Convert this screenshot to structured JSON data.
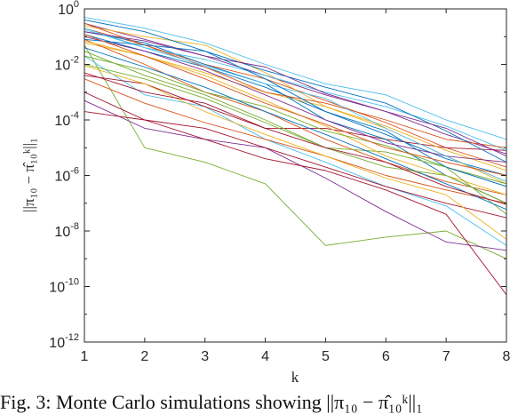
{
  "chart_data": {
    "type": "line",
    "title": "",
    "xlabel": "k",
    "ylabel": "||π₁₀ − π̂₁₀ᵏ||₁",
    "x": [
      1,
      2,
      3,
      4,
      5,
      6,
      7,
      8
    ],
    "xlim": [
      1,
      8
    ],
    "ylim": [
      1e-12,
      1
    ],
    "yscale": "log",
    "x_ticks": [
      "1",
      "2",
      "3",
      "4",
      "5",
      "6",
      "7",
      "8"
    ],
    "y_ticks": [
      {
        "base": "10",
        "exp": "0"
      },
      {
        "base": "10",
        "exp": "-2"
      },
      {
        "base": "10",
        "exp": "-4"
      },
      {
        "base": "10",
        "exp": "-6"
      },
      {
        "base": "10",
        "exp": "-8"
      },
      {
        "base": "10",
        "exp": "-10"
      },
      {
        "base": "10",
        "exp": "-12"
      }
    ],
    "grid": false,
    "series_colors": [
      "#0072bd",
      "#d95319",
      "#edb120",
      "#7e2f8e",
      "#77ac30",
      "#4dbeee",
      "#a2142f"
    ],
    "series": [
      {
        "values": [
          0.12,
          0.03,
          0.008,
          0.0015,
          0.0002,
          3e-05,
          4e-06,
          1e-06
        ]
      },
      {
        "values": [
          0.2,
          0.05,
          0.01,
          0.003,
          0.0005,
          8e-05,
          1e-05,
          2e-06
        ]
      },
      {
        "values": [
          0.06,
          0.02,
          0.005,
          0.001,
          0.0003,
          5e-05,
          5e-06,
          5e-07
        ]
      },
      {
        "values": [
          0.3,
          0.08,
          0.02,
          0.004,
          0.0008,
          0.0002,
          3e-05,
          6e-06
        ]
      },
      {
        "values": [
          0.05,
          1e-05,
          3e-06,
          5e-07,
          3e-09,
          6e-09,
          1e-08,
          1e-09
        ]
      },
      {
        "values": [
          0.02,
          0.0008,
          0.0003,
          2e-05,
          3e-06,
          4e-07,
          8e-08,
          3e-09
        ]
      },
      {
        "values": [
          0.004,
          0.002,
          0.0003,
          5e-05,
          5e-05,
          2e-05,
          1e-05,
          8e-06
        ]
      },
      {
        "values": [
          0.15,
          0.06,
          0.01,
          0.002,
          0.0001,
          2e-05,
          1e-06,
          1e-07
        ]
      },
      {
        "values": [
          0.08,
          0.01,
          0.001,
          0.0002,
          2e-05,
          3e-06,
          6e-07,
          2e-07
        ]
      },
      {
        "values": [
          0.25,
          0.1,
          0.05,
          0.005,
          0.0003,
          6e-05,
          8e-06,
          1.5e-06
        ]
      },
      {
        "values": [
          0.0005,
          5e-05,
          2e-05,
          1e-05,
          8e-07,
          5e-08,
          4e-09,
          2e-09
        ]
      },
      {
        "values": [
          0.01,
          0.003,
          0.0006,
          8e-05,
          1e-05,
          7e-06,
          2e-06,
          5e-07
        ]
      },
      {
        "values": [
          0.18,
          0.04,
          0.015,
          0.004,
          0.001,
          0.0003,
          6e-05,
          8e-06
        ]
      },
      {
        "values": [
          0.001,
          0.0001,
          2e-05,
          4e-06,
          1.5e-06,
          3e-07,
          4e-08,
          5e-11
        ]
      },
      {
        "values": [
          0.4,
          0.15,
          0.03,
          0.006,
          0.0015,
          0.0004,
          4e-05,
          3e-06
        ]
      },
      {
        "values": [
          0.003,
          0.0004,
          8e-05,
          2e-05,
          5e-06,
          1e-06,
          3e-07,
          1e-07
        ]
      },
      {
        "values": [
          0.07,
          0.02,
          0.004,
          0.0005,
          6e-05,
          5e-06,
          1e-06,
          2e-07
        ]
      },
      {
        "values": [
          0.1,
          0.03,
          0.006,
          0.0008,
          0.0001,
          1.5e-05,
          5e-06,
          3e-06
        ]
      },
      {
        "values": [
          0.02,
          0.006,
          0.001,
          0.0003,
          4e-05,
          1.2e-05,
          2e-06,
          4e-08
        ]
      },
      {
        "values": [
          0.5,
          0.2,
          0.06,
          0.01,
          0.002,
          0.0008,
          0.0001,
          2e-05
        ]
      },
      {
        "values": [
          0.0002,
          0.0001,
          5e-05,
          1e-05,
          2e-06,
          4e-07,
          1e-07,
          3e-08
        ]
      },
      {
        "values": [
          0.04,
          0.008,
          0.0015,
          0.0002,
          3e-05,
          4e-06,
          5e-07,
          6e-08
        ]
      },
      {
        "values": [
          0.3,
          0.05,
          0.008,
          0.001,
          0.0004,
          0.0001,
          2e-05,
          1e-05
        ]
      },
      {
        "values": [
          0.009,
          0.002,
          0.0002,
          3e-05,
          5e-06,
          8e-07,
          2e-07,
          5e-09
        ]
      },
      {
        "values": [
          0.15,
          0.07,
          0.02,
          0.008,
          0.0009,
          0.0002,
          5e-05,
          5e-06
        ]
      },
      {
        "values": [
          0.03,
          0.004,
          0.0008,
          0.0001,
          1e-05,
          2e-06,
          1e-06,
          1e-07
        ]
      },
      {
        "values": [
          0.2,
          0.04,
          0.009,
          0.002,
          0.0006,
          5e-05,
          5e-06,
          6e-07
        ]
      },
      {
        "values": [
          0.005,
          0.001,
          0.0004,
          5e-05,
          1e-05,
          3e-06,
          4e-07,
          9e-08
        ]
      },
      {
        "values": [
          0.08,
          0.05,
          0.03,
          0.003,
          0.0002,
          4e-05,
          2e-06,
          4e-07
        ]
      },
      {
        "values": [
          0.12,
          0.02,
          0.003,
          0.0004,
          7e-05,
          1e-05,
          3e-06,
          1e-06
        ]
      }
    ]
  },
  "caption": "Fig. 3: Monte Carlo simulations showing ||π₁₀ − π̂₁₀ᵏ||₁"
}
